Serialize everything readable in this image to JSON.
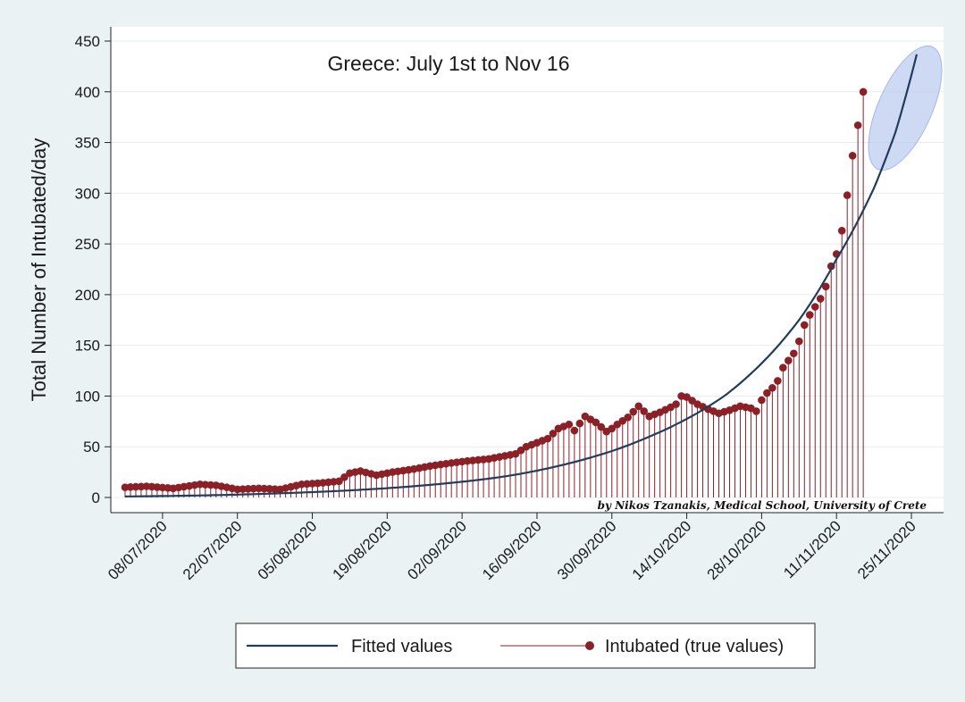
{
  "chart_data": {
    "type": "line",
    "title": "Greece: July 1st to Nov 16",
    "ylabel": "Total Number of Intubated/day",
    "xlabel": "",
    "ylim": [
      0,
      450
    ],
    "yticks": [
      0,
      50,
      100,
      150,
      200,
      250,
      300,
      350,
      400,
      450
    ],
    "x_range": [
      "2020-07-01",
      "2020-11-27"
    ],
    "x_tick_labels": [
      "08/07/2020",
      "22/07/2020",
      "05/08/2020",
      "19/08/2020",
      "02/09/2020",
      "16/09/2020",
      "30/09/2020",
      "14/10/2020",
      "28/10/2020",
      "11/11/2020",
      "25/11/2020"
    ],
    "x_tick_dates": [
      "2020-07-08",
      "2020-07-22",
      "2020-08-05",
      "2020-08-19",
      "2020-09-02",
      "2020-09-16",
      "2020-09-30",
      "2020-10-14",
      "2020-10-28",
      "2020-11-11",
      "2020-11-25"
    ],
    "grid": "horizontal",
    "legend_position": "bottom",
    "credit": "by Nikos Tzanakis, Medical School, University of Crete",
    "highlight": "ellipse around the projected end of the fitted curve",
    "series": [
      {
        "name": "Fitted values",
        "style": "line",
        "color": "#1f3d5c",
        "x": [
          "2020-07-01",
          "2020-07-15",
          "2020-07-29",
          "2020-08-12",
          "2020-08-26",
          "2020-09-09",
          "2020-09-23",
          "2020-10-07",
          "2020-10-21",
          "2020-11-04",
          "2020-11-11",
          "2020-11-18",
          "2020-11-22",
          "2020-11-26"
        ],
        "values": [
          1,
          2,
          4,
          7,
          12,
          20,
          35,
          60,
          100,
          175,
          235,
          305,
          360,
          437
        ]
      },
      {
        "name": "Intubated (true values)",
        "style": "dropline",
        "color": "#8b2027",
        "x": [
          "2020-07-01",
          "2020-07-05",
          "2020-07-10",
          "2020-07-15",
          "2020-07-18",
          "2020-07-22",
          "2020-07-26",
          "2020-07-30",
          "2020-08-03",
          "2020-08-06",
          "2020-08-10",
          "2020-08-12",
          "2020-08-14",
          "2020-08-17",
          "2020-08-20",
          "2020-08-24",
          "2020-08-27",
          "2020-08-31",
          "2020-09-03",
          "2020-09-07",
          "2020-09-10",
          "2020-09-12",
          "2020-09-14",
          "2020-09-16",
          "2020-09-18",
          "2020-09-20",
          "2020-09-22",
          "2020-09-23",
          "2020-09-25",
          "2020-09-27",
          "2020-09-29",
          "2020-09-30",
          "2020-10-01",
          "2020-10-03",
          "2020-10-05",
          "2020-10-07",
          "2020-10-09",
          "2020-10-11",
          "2020-10-12",
          "2020-10-13",
          "2020-10-14",
          "2020-10-16",
          "2020-10-18",
          "2020-10-20",
          "2020-10-22",
          "2020-10-24",
          "2020-10-26",
          "2020-10-27",
          "2020-10-28",
          "2020-10-29",
          "2020-10-30",
          "2020-10-31",
          "2020-11-01",
          "2020-11-02",
          "2020-11-03",
          "2020-11-04",
          "2020-11-05",
          "2020-11-06",
          "2020-11-07",
          "2020-11-08",
          "2020-11-09",
          "2020-11-10",
          "2020-11-11",
          "2020-11-12",
          "2020-11-13",
          "2020-11-14",
          "2020-11-15",
          "2020-11-16"
        ],
        "values": [
          10,
          11,
          9,
          13,
          12,
          8,
          9,
          8,
          13,
          14,
          16,
          24,
          26,
          22,
          25,
          28,
          31,
          34,
          36,
          38,
          41,
          43,
          50,
          54,
          58,
          68,
          72,
          66,
          80,
          74,
          65,
          68,
          72,
          79,
          90,
          80,
          84,
          89,
          92,
          100,
          99,
          92,
          87,
          83,
          86,
          90,
          88,
          85,
          96,
          103,
          108,
          115,
          128,
          135,
          142,
          154,
          170,
          180,
          188,
          196,
          208,
          228,
          240,
          263,
          298,
          337,
          367,
          400
        ]
      }
    ]
  },
  "legend": [
    {
      "label": "Fitted values",
      "style": "line",
      "color": "#1f3d5c"
    },
    {
      "label": "Intubated (true values)",
      "style": "dropline",
      "color": "#8b2027"
    }
  ],
  "colors": {
    "background": "#eaf2f3",
    "plot_background": "#ffffff",
    "highlight_fill": "#b9cbee"
  }
}
